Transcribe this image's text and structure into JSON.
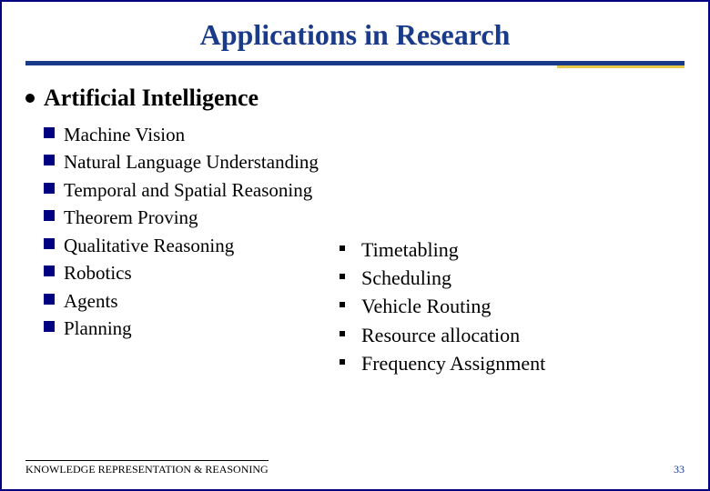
{
  "title": "Applications in Research",
  "section": "Artificial Intelligence",
  "leftItems": [
    "Machine Vision",
    "Natural Language Understanding",
    "Temporal and Spatial Reasoning",
    "Theorem Proving",
    "Qualitative Reasoning",
    "Robotics",
    "Agents",
    "Planning"
  ],
  "rightItems": [
    "Timetabling",
    "Scheduling",
    "Vehicle Routing",
    "Resource allocation",
    "Frequency Assignment"
  ],
  "footer": {
    "label": "KNOWLEDGE REPRESENTATION & REASONING",
    "page": "33"
  },
  "colors": {
    "titleColor": "#1a3a8a",
    "dividerMain": "#1a3a8a",
    "dividerAccent": "#e8c94a",
    "bulletSquare": "#000080",
    "border": "#000080",
    "text": "#000000",
    "background": "#ffffff"
  },
  "typography": {
    "family": "Times New Roman",
    "titleSize": 32,
    "sectionSize": 26,
    "leftItemSize": 21,
    "rightItemSize": 22,
    "footerSize": 12
  }
}
